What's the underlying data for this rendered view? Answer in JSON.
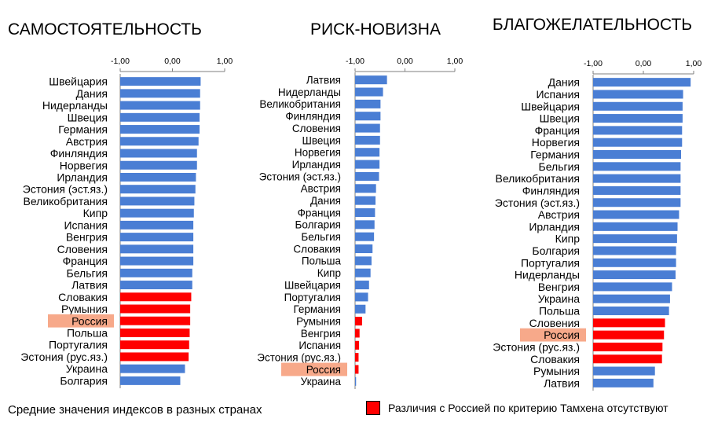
{
  "colors": {
    "normal": "#4a7ed4",
    "similar": "#ff0000",
    "highlight": "#f7a98a"
  },
  "footer": {
    "caption": "Средние значения индексов в разных странах",
    "legend": "Различия с Россией по критерию Тамхена отсутствуют"
  },
  "chart_data": [
    {
      "type": "bar",
      "orientation": "horizontal",
      "title": "САМОСТОЯТЕЛЬНОСТЬ",
      "xlim": [
        -1,
        1
      ],
      "ticks": [
        "-1,00",
        "0,00",
        "1,00"
      ],
      "highlight": "Россия",
      "categories": [
        "Швейцария",
        "Дания",
        "Нидерланды",
        "Швеция",
        "Германия",
        "Австрия",
        "Финляндия",
        "Норвегия",
        "Ирландия",
        "Эстония (эст.яз.)",
        "Великобритания",
        "Кипр",
        "Испания",
        "Венгрия",
        "Словения",
        "Франция",
        "Бельгия",
        "Латвия",
        "Словакия",
        "Румыния",
        "Россия",
        "Польша",
        "Португалия",
        "Эстония (рус.яз.)",
        "Украина",
        "Болгария"
      ],
      "values": [
        0.54,
        0.53,
        0.53,
        0.52,
        0.52,
        0.5,
        0.47,
        0.47,
        0.45,
        0.44,
        0.42,
        0.41,
        0.4,
        0.4,
        0.4,
        0.4,
        0.38,
        0.38,
        0.36,
        0.34,
        0.34,
        0.33,
        0.32,
        0.31,
        0.24,
        0.15
      ],
      "similar_to_russia": [
        false,
        false,
        false,
        false,
        false,
        false,
        false,
        false,
        false,
        false,
        false,
        false,
        false,
        false,
        false,
        false,
        false,
        false,
        true,
        true,
        true,
        true,
        true,
        true,
        false,
        false
      ]
    },
    {
      "type": "bar",
      "orientation": "horizontal",
      "title": "РИСК-НОВИЗНА",
      "xlim": [
        -1,
        1
      ],
      "ticks": [
        "-1,00",
        "0,00",
        "1,00"
      ],
      "highlight": "Россия",
      "categories": [
        "Латвия",
        "Нидерланды",
        "Великобритания",
        "Финляндия",
        "Словения",
        "Швеция",
        "Норвегия",
        "Ирландия",
        "Эстония (эст.яз.)",
        "Австрия",
        "Дания",
        "Франция",
        "Болгария",
        "Бельгия",
        "Словакия",
        "Польша",
        "Кипр",
        "Швейцария",
        "Португалия",
        "Германия",
        "Румыния",
        "Венгрия",
        "Испания",
        "Эстония (рус.яз.)",
        "Россия",
        "Украина"
      ],
      "values": [
        -0.36,
        -0.44,
        -0.49,
        -0.49,
        -0.5,
        -0.5,
        -0.51,
        -0.51,
        -0.52,
        -0.58,
        -0.59,
        -0.6,
        -0.61,
        -0.62,
        -0.65,
        -0.67,
        -0.69,
        -0.72,
        -0.74,
        -0.79,
        -0.86,
        -0.91,
        -0.92,
        -0.93,
        -0.93,
        -0.98
      ],
      "similar_to_russia": [
        false,
        false,
        false,
        false,
        false,
        false,
        false,
        false,
        false,
        false,
        false,
        false,
        false,
        false,
        false,
        false,
        false,
        false,
        false,
        false,
        true,
        true,
        true,
        true,
        true,
        false
      ]
    },
    {
      "type": "bar",
      "orientation": "horizontal",
      "title": "БЛАГОЖЕЛАТЕЛЬНОСТЬ",
      "xlim": [
        -1,
        1
      ],
      "ticks": [
        "-1,00",
        "0,00",
        "1,00"
      ],
      "highlight": "Россия",
      "categories": [
        "Дания",
        "Испания",
        "Швейцария",
        "Швеция",
        "Франция",
        "Норвегия",
        "Германия",
        "Бельгия",
        "Великобритания",
        "Финляндия",
        "Эстония (эст.яз.)",
        "Австрия",
        "Ирландия",
        "Кипр",
        "Болгария",
        "Португалия",
        "Нидерланды",
        "Венгрия",
        "Украина",
        "Польша",
        "Словения",
        "Россия",
        "Эстония (рус.яз.)",
        "Словакия",
        "Румыния",
        "Латвия"
      ],
      "values": [
        0.94,
        0.79,
        0.78,
        0.78,
        0.77,
        0.77,
        0.75,
        0.74,
        0.74,
        0.74,
        0.74,
        0.71,
        0.68,
        0.67,
        0.65,
        0.65,
        0.64,
        0.57,
        0.53,
        0.51,
        0.43,
        0.41,
        0.38,
        0.37,
        0.23,
        0.2
      ],
      "similar_to_russia": [
        false,
        false,
        false,
        false,
        false,
        false,
        false,
        false,
        false,
        false,
        false,
        false,
        false,
        false,
        false,
        false,
        false,
        false,
        false,
        false,
        true,
        true,
        true,
        true,
        false,
        false
      ]
    }
  ]
}
